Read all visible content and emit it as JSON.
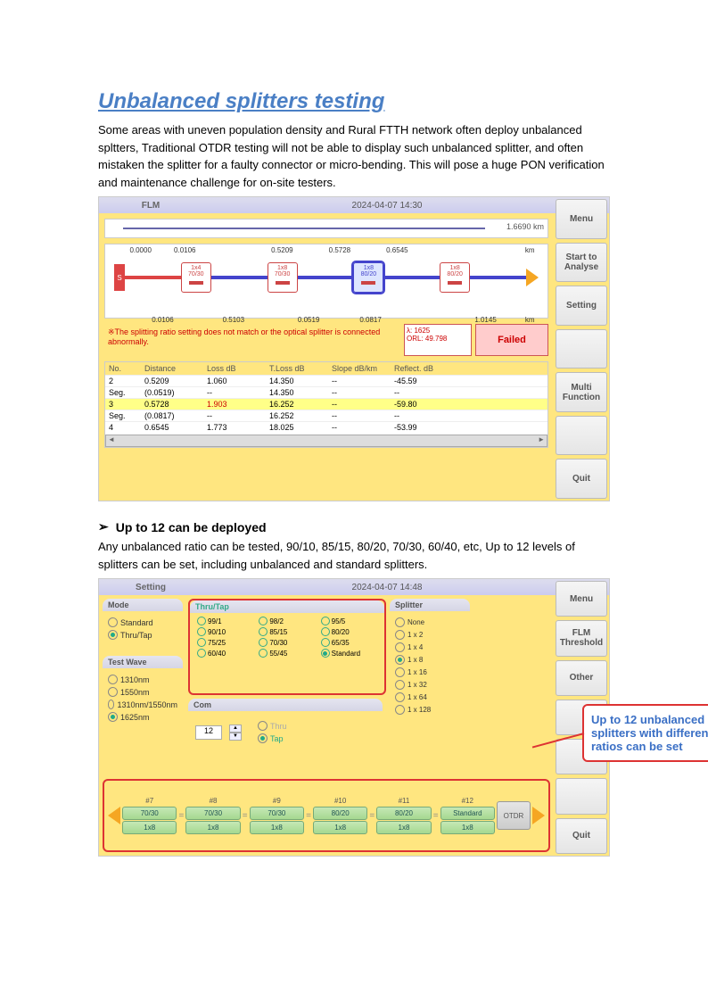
{
  "title": "Unbalanced splitters testing",
  "para1": "Some areas with uneven population density and Rural FTTH network often deploy unbalanced spltters, Traditional OTDR testing will not be able to display such unbalanced splitter, and often mistaken the splitter for a faulty connector or micro-bending. This will pose a huge PON verification and maintenance challenge for on-site testers.",
  "ss1": {
    "header_title": "FLM",
    "header_date": "2024-04-07 14:30",
    "sidebar": [
      "Menu",
      "Start to Analyse",
      "Setting",
      "",
      "Multi Function",
      "",
      "Quit"
    ],
    "timeline_end": "1.6690 km",
    "top_vals": [
      "0.0000",
      "0.0106",
      "0.5209",
      "0.5728",
      "0.6545",
      "km"
    ],
    "top_pos": [
      8,
      18,
      40,
      53,
      66,
      96
    ],
    "bot_vals": [
      "0.0106",
      "0.5103",
      "0.0519",
      "0.0817",
      "1.0145",
      "km"
    ],
    "bot_pos": [
      13,
      29,
      46,
      60,
      86,
      96
    ],
    "nodes": [
      {
        "type": "start"
      },
      {
        "t1": "1x4",
        "t2": "70/30",
        "border": "#c44",
        "text": "#c44"
      },
      {
        "t1": "1x8",
        "t2": "70/30",
        "border": "#c44",
        "text": "#c44"
      },
      {
        "t1": "1x8",
        "t2": "80/20",
        "border": "#44c",
        "text": "#44c",
        "bg": "#dde5ff",
        "sel": true
      },
      {
        "t1": "1x8",
        "t2": "80/20",
        "border": "#c44",
        "text": "#c44"
      }
    ],
    "line_colors": [
      "#d44",
      "#44c",
      "#44c",
      "#44c",
      "#44c",
      "#44c"
    ],
    "warn_text": "※The splitting ratio setting does not match or the optical splitter is connected abnormally.",
    "lambda1": "λ: 1625",
    "lambda2": "ORL: 49.798",
    "fail": "Failed",
    "cols": [
      "No.",
      "Distance",
      "Loss dB",
      "T.Loss dB",
      "Slope dB/km",
      "Reflect. dB"
    ],
    "rows": [
      {
        "hl": false,
        "c": [
          "2",
          "0.5209",
          "1.060",
          "14.350",
          "--",
          "-45.59"
        ]
      },
      {
        "hl": false,
        "c": [
          "Seg.",
          "(0.0519)",
          "--",
          "14.350",
          "--",
          "--"
        ]
      },
      {
        "hl": true,
        "c": [
          "3",
          "0.5728",
          "1.903",
          "16.252",
          "--",
          "-59.80"
        ],
        "red_idx": 2
      },
      {
        "hl": false,
        "c": [
          "Seg.",
          "(0.0817)",
          "--",
          "16.252",
          "--",
          "--"
        ]
      },
      {
        "hl": false,
        "c": [
          "4",
          "0.6545",
          "1.773",
          "18.025",
          "--",
          "-53.99"
        ]
      }
    ]
  },
  "sub_title": "Up to 12 can be deployed",
  "para2": "Any unbalanced ratio can be tested, 90/10, 85/15, 80/20, 70/30, 60/40, etc, Up to 12 levels of splitters can be set, including unbalanced and standard splitters.",
  "ss2": {
    "header_title": "Setting",
    "header_date": "2024-04-07 14:48",
    "sidebar": [
      "Menu",
      "FLM Threshold",
      "Other",
      "",
      "",
      "",
      "Quit"
    ],
    "mode_title": "Mode",
    "mode_items": [
      {
        "l": "Standard",
        "s": false
      },
      {
        "l": "Thru/Tap",
        "s": true
      }
    ],
    "wave_title": "Test Wave",
    "wave_items": [
      {
        "l": "1310nm",
        "s": false
      },
      {
        "l": "1550nm",
        "s": false
      },
      {
        "l": "1310nm/1550nm",
        "s": false
      },
      {
        "l": "1625nm",
        "s": true
      }
    ],
    "thru_title": "Thru/Tap",
    "thru_items": [
      {
        "l": "99/1",
        "s": false
      },
      {
        "l": "98/2",
        "s": false
      },
      {
        "l": "95/5",
        "s": false
      },
      {
        "l": "90/10",
        "s": false
      },
      {
        "l": "85/15",
        "s": false
      },
      {
        "l": "80/20",
        "s": false
      },
      {
        "l": "75/25",
        "s": false
      },
      {
        "l": "70/30",
        "s": false
      },
      {
        "l": "65/35",
        "s": false
      },
      {
        "l": "60/40",
        "s": false
      },
      {
        "l": "55/45",
        "s": false
      },
      {
        "l": "Standard",
        "s": true
      }
    ],
    "com_title": "Com",
    "com_value": "12",
    "com_r": [
      {
        "l": "Thru",
        "s": false
      },
      {
        "l": "Tap",
        "s": true
      }
    ],
    "split_title": "Splitter",
    "split_items": [
      {
        "l": "None",
        "s": false
      },
      {
        "l": "1 x 2",
        "s": false
      },
      {
        "l": "1 x 4",
        "s": false
      },
      {
        "l": "1 x 8",
        "s": true
      },
      {
        "l": "1 x 16",
        "s": false
      },
      {
        "l": "1 x 32",
        "s": false
      },
      {
        "l": "1 x 64",
        "s": false
      },
      {
        "l": "1 x 128",
        "s": false
      }
    ],
    "chain_labels": [
      "#7",
      "#8",
      "#9",
      "#10",
      "#11",
      "#12"
    ],
    "chain_boxes": [
      [
        "70/30",
        "1x8"
      ],
      [
        "70/30",
        "1x8"
      ],
      [
        "70/30",
        "1x8"
      ],
      [
        "80/20",
        "1x8"
      ],
      [
        "80/20",
        "1x8"
      ],
      [
        "Standard",
        "1x8"
      ]
    ],
    "otdr": "OTDR",
    "callout": "Up to 12 unbalanced splitters with different ratios can be set"
  }
}
